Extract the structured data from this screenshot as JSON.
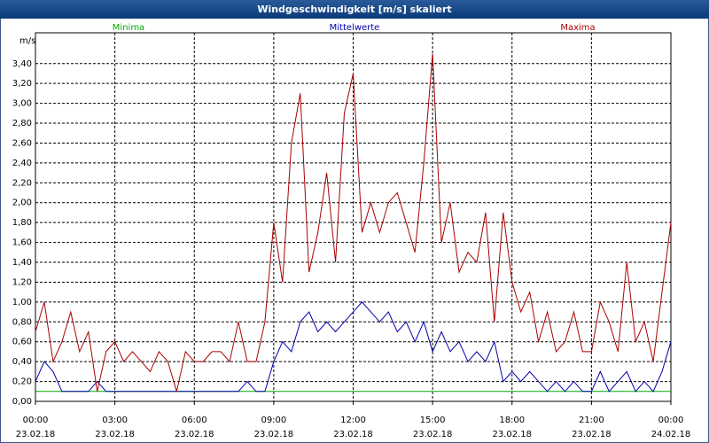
{
  "chart_data": {
    "type": "line",
    "title": "Windgeschwindigkeit [m/s] skaliert",
    "y_label": "m/s",
    "x": [
      0,
      20,
      40,
      60,
      80,
      100,
      120,
      140,
      160,
      180,
      200,
      220,
      240,
      260,
      280,
      300,
      320,
      340,
      360,
      380,
      400,
      420,
      440,
      460,
      480,
      500,
      520,
      540,
      560,
      580,
      600,
      620,
      640,
      660,
      680,
      700,
      720,
      740,
      760,
      780,
      800,
      820,
      840,
      860,
      880,
      900,
      920,
      940,
      960,
      980,
      1000,
      1020,
      1040,
      1060,
      1080,
      1100,
      1120,
      1140,
      1160,
      1180,
      1200,
      1220,
      1240,
      1260,
      1280,
      1300,
      1320,
      1340,
      1360,
      1380,
      1400,
      1420,
      1440
    ],
    "series": [
      {
        "name": "Minima",
        "color": "#00aa00",
        "values": [
          0.1,
          0.1,
          0.1,
          0.1,
          0.1,
          0.1,
          0.1,
          0.1,
          0.1,
          0.1,
          0.1,
          0.1,
          0.1,
          0.1,
          0.1,
          0.1,
          0.1,
          0.1,
          0.1,
          0.1,
          0.1,
          0.1,
          0.1,
          0.1,
          0.1,
          0.1,
          0.1,
          0.1,
          0.1,
          0.1,
          0.1,
          0.1,
          0.1,
          0.1,
          0.1,
          0.1,
          0.1,
          0.1,
          0.1,
          0.1,
          0.1,
          0.1,
          0.1,
          0.1,
          0.1,
          0.1,
          0.1,
          0.1,
          0.1,
          0.1,
          0.1,
          0.1,
          0.1,
          0.1,
          0.1,
          0.1,
          0.1,
          0.1,
          0.1,
          0.1,
          0.1,
          0.1,
          0.1,
          0.1,
          0.1,
          0.1,
          0.1,
          0.1,
          0.1,
          0.1,
          0.1,
          0.1,
          0.1
        ]
      },
      {
        "name": "Mittelwerte",
        "color": "#0000aa",
        "values": [
          0.2,
          0.4,
          0.3,
          0.1,
          0.1,
          0.1,
          0.1,
          0.2,
          0.1,
          0.1,
          0.1,
          0.1,
          0.1,
          0.1,
          0.1,
          0.1,
          0.1,
          0.1,
          0.1,
          0.1,
          0.1,
          0.1,
          0.1,
          0.1,
          0.2,
          0.1,
          0.1,
          0.4,
          0.6,
          0.5,
          0.8,
          0.9,
          0.7,
          0.8,
          0.7,
          0.8,
          0.9,
          1.0,
          0.9,
          0.8,
          0.9,
          0.7,
          0.8,
          0.6,
          0.8,
          0.5,
          0.7,
          0.5,
          0.6,
          0.4,
          0.5,
          0.4,
          0.6,
          0.2,
          0.3,
          0.2,
          0.3,
          0.2,
          0.1,
          0.2,
          0.1,
          0.2,
          0.1,
          0.1,
          0.3,
          0.1,
          0.2,
          0.3,
          0.1,
          0.2,
          0.1,
          0.3,
          0.6
        ]
      },
      {
        "name": "Maxima",
        "color": "#aa0000",
        "values": [
          0.7,
          1.0,
          0.4,
          0.6,
          0.9,
          0.5,
          0.7,
          0.1,
          0.5,
          0.6,
          0.4,
          0.5,
          0.4,
          0.3,
          0.5,
          0.4,
          0.1,
          0.5,
          0.4,
          0.4,
          0.5,
          0.5,
          0.4,
          0.8,
          0.4,
          0.4,
          0.8,
          1.8,
          1.2,
          2.6,
          3.1,
          1.3,
          1.7,
          2.3,
          1.4,
          2.9,
          3.3,
          1.7,
          2.0,
          1.7,
          2.0,
          2.1,
          1.8,
          1.5,
          2.4,
          3.5,
          1.6,
          2.0,
          1.3,
          1.5,
          1.4,
          1.9,
          0.8,
          1.9,
          1.2,
          0.9,
          1.1,
          0.6,
          0.9,
          0.5,
          0.6,
          0.9,
          0.5,
          0.5,
          1.0,
          0.8,
          0.5,
          1.4,
          0.6,
          0.8,
          0.4,
          1.1,
          1.8
        ]
      }
    ],
    "xlim": [
      0,
      1440
    ],
    "xticks": [
      {
        "value": 0,
        "label": [
          "00:00",
          "23.02.18"
        ]
      },
      {
        "value": 180,
        "label": [
          "03:00",
          "23.02.18"
        ]
      },
      {
        "value": 360,
        "label": [
          "06:00",
          "23.02.18"
        ]
      },
      {
        "value": 540,
        "label": [
          "09:00",
          "23.02.18"
        ]
      },
      {
        "value": 720,
        "label": [
          "12:00",
          "23.02.18"
        ]
      },
      {
        "value": 900,
        "label": [
          "15:00",
          "23.02.18"
        ]
      },
      {
        "value": 1080,
        "label": [
          "18:00",
          "23.02.18"
        ]
      },
      {
        "value": 1260,
        "label": [
          "21:00",
          "23.02.18"
        ]
      },
      {
        "value": 1440,
        "label": [
          "00:00",
          "24.02.18"
        ]
      }
    ],
    "ylim": [
      0,
      3.71
    ],
    "yticks": [
      {
        "value": 0,
        "label": "0,00"
      },
      {
        "value": 0.2,
        "label": "0,20"
      },
      {
        "value": 0.4,
        "label": "0,40"
      },
      {
        "value": 0.6,
        "label": "0,60"
      },
      {
        "value": 0.8,
        "label": "0,80"
      },
      {
        "value": 1.0,
        "label": "1,00"
      },
      {
        "value": 1.2,
        "label": "1,20"
      },
      {
        "value": 1.4,
        "label": "1,40"
      },
      {
        "value": 1.6,
        "label": "1,60"
      },
      {
        "value": 1.8,
        "label": "1,80"
      },
      {
        "value": 2.0,
        "label": "2,00"
      },
      {
        "value": 2.2,
        "label": "2,20"
      },
      {
        "value": 2.4,
        "label": "2,40"
      },
      {
        "value": 2.6,
        "label": "2,60"
      },
      {
        "value": 2.8,
        "label": "2,80"
      },
      {
        "value": 3.0,
        "label": "3,00"
      },
      {
        "value": 3.2,
        "label": "3,20"
      },
      {
        "value": 3.4,
        "label": "3,40"
      }
    ],
    "grid": true
  }
}
